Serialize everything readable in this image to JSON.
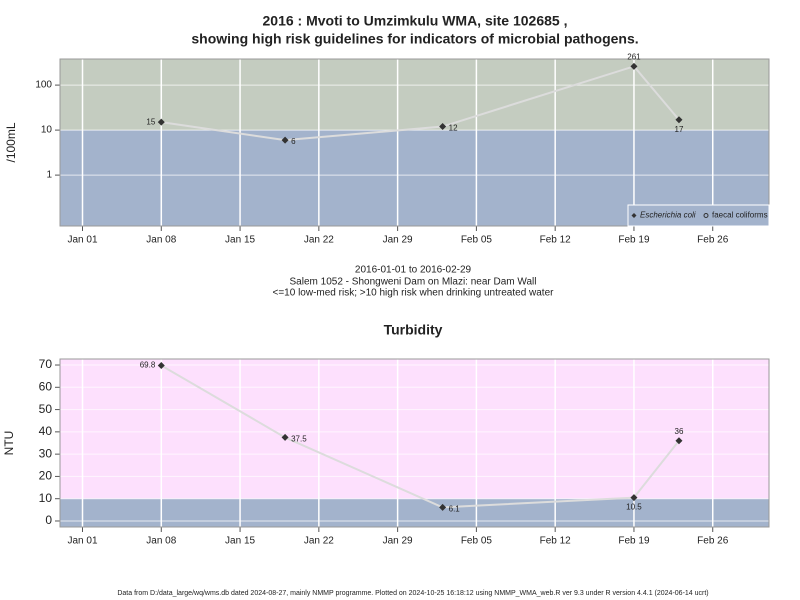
{
  "title": [
    "2016 : Mvoti to Umzimkulu WMA, site 102685 ,",
    "showing high risk guidelines for indicators of microbial pathogens."
  ],
  "chart_data": [
    {
      "type": "line",
      "ylabel": "/100mL",
      "log_scale": true,
      "subtitle": [
        "2016-01-01 to 2016-02-29",
        "Salem 1052 - Shongweni Dam on Mlazi: near Dam Wall",
        "<=10 low-med risk; >10 high risk when drinking untreated water"
      ],
      "x": [
        "2016-01-08",
        "2016-01-19",
        "2016-02-02",
        "2016-02-19",
        "2016-02-23"
      ],
      "series": [
        {
          "name": "Escherichia coli",
          "color": "#333333",
          "marker": "diamond",
          "values": [
            15,
            6,
            12,
            261,
            17
          ]
        },
        {
          "name": "faecal coliforms",
          "color": "#333333",
          "marker": "circle",
          "values": [
            null,
            null,
            null,
            null,
            null
          ]
        }
      ],
      "xlim": [
        "2015-12-30",
        "2016-03-02"
      ],
      "xticks": [
        {
          "value": "2016-01-01",
          "label": "Jan 01"
        },
        {
          "value": "2016-01-08",
          "label": "Jan 08"
        },
        {
          "value": "2016-01-15",
          "label": "Jan 15"
        },
        {
          "value": "2016-01-22",
          "label": "Jan 22"
        },
        {
          "value": "2016-01-29",
          "label": "Jan 29"
        },
        {
          "value": "2016-02-05",
          "label": "Feb 05"
        },
        {
          "value": "2016-02-12",
          "label": "Feb 12"
        },
        {
          "value": "2016-02-19",
          "label": "Feb 19"
        },
        {
          "value": "2016-02-26",
          "label": "Feb 26"
        }
      ],
      "ylim": [
        0.074,
        380
      ],
      "yticks": [
        1,
        10,
        100
      ],
      "threshold": 10,
      "band_colors": {
        "above": "#c4ccc0",
        "below": "#a3b3cc"
      },
      "line_color": "#dcdcdc",
      "grid": true,
      "legend": "bottomright"
    },
    {
      "type": "line",
      "title": "Turbidity",
      "ylabel": "NTU",
      "log_scale": false,
      "x": [
        "2016-01-08",
        "2016-01-19",
        "2016-02-02",
        "2016-02-19",
        "2016-02-23"
      ],
      "values": [
        69.8,
        37.5,
        6.1,
        10.5,
        36
      ],
      "color": "#333333",
      "xlim": [
        "2015-12-30",
        "2016-03-02"
      ],
      "xticks": [
        {
          "value": "2016-01-01",
          "label": "Jan 01"
        },
        {
          "value": "2016-01-08",
          "label": "Jan 08"
        },
        {
          "value": "2016-01-15",
          "label": "Jan 15"
        },
        {
          "value": "2016-01-22",
          "label": "Jan 22"
        },
        {
          "value": "2016-01-29",
          "label": "Jan 29"
        },
        {
          "value": "2016-02-05",
          "label": "Feb 05"
        },
        {
          "value": "2016-02-12",
          "label": "Feb 12"
        },
        {
          "value": "2016-02-19",
          "label": "Feb 19"
        },
        {
          "value": "2016-02-26",
          "label": "Feb 26"
        }
      ],
      "ylim": [
        -2.7,
        72.7
      ],
      "yticks": [
        0,
        10,
        20,
        30,
        40,
        50,
        60,
        70
      ],
      "threshold": 10,
      "band_colors": {
        "above": "#fde0fd",
        "below": "#a3b3cc"
      },
      "line_color": "#dcdcdc",
      "grid": true
    }
  ],
  "footer": "Data from D:/data_large/wq/wms.db dated 2024-08-27, mainly NMMP programme. Plotted on 2024-10-25 16:18:12 using NMMP_WMA_web.R ver 9.3 under R version 4.4.1 (2024-06-14 ucrt)"
}
